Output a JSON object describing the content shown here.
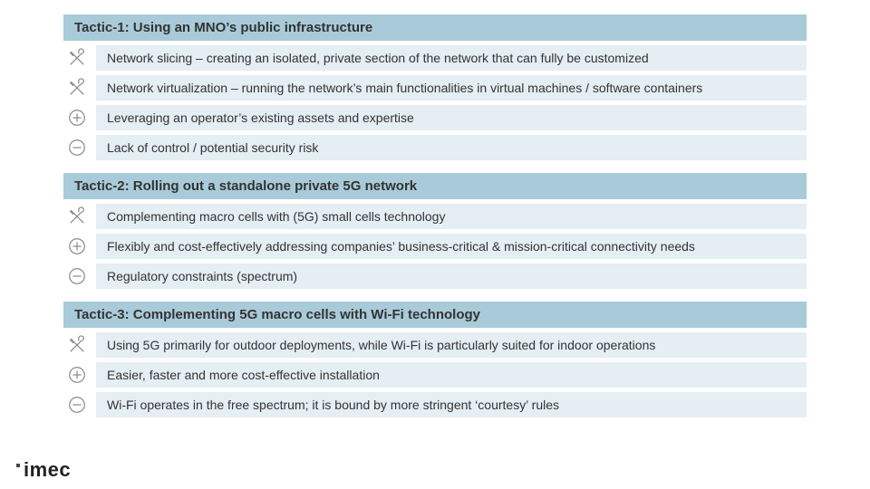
{
  "colors": {
    "header_bg": "#a9cbd9",
    "row_bg": "#e4eef3",
    "header_text": "#333333",
    "row_text": "#333333",
    "icon_stroke": "#888888"
  },
  "typography": {
    "header_fontsize": 15,
    "header_weight": 600,
    "row_fontsize": 14,
    "row_weight": 400
  },
  "tactics": [
    {
      "title": "Tactic-1: Using an MNO’s public infrastructure",
      "items": [
        {
          "icon": "tools",
          "text": "Network slicing – creating an isolated, private section of the network that can fully be customized"
        },
        {
          "icon": "tools",
          "text": "Network virtualization – running the network’s main functionalities in virtual machines / software containers"
        },
        {
          "icon": "plus",
          "text": "Leveraging an operator’s existing assets and expertise"
        },
        {
          "icon": "minus",
          "text": "Lack of control / potential security risk"
        }
      ]
    },
    {
      "title": "Tactic-2: Rolling out a standalone private 5G network",
      "items": [
        {
          "icon": "tools",
          "text": "Complementing macro cells with (5G) small cells technology"
        },
        {
          "icon": "plus",
          "text": "Flexibly and cost-effectively addressing companies’ business-critical & mission-critical connectivity needs"
        },
        {
          "icon": "minus",
          "text": "Regulatory constraints (spectrum)"
        }
      ]
    },
    {
      "title": "Tactic-3: Complementing 5G macro cells with Wi-Fi technology",
      "items": [
        {
          "icon": "tools",
          "text": "Using 5G primarily for outdoor deployments, while Wi-Fi is particularly suited for indoor operations"
        },
        {
          "icon": "plus",
          "text": "Easier, faster and more cost-effective installation"
        },
        {
          "icon": "minus",
          "text": "Wi-Fi operates in the free spectrum; it is bound by more stringent ‘courtesy’ rules"
        }
      ]
    }
  ],
  "logo_text": "imec"
}
